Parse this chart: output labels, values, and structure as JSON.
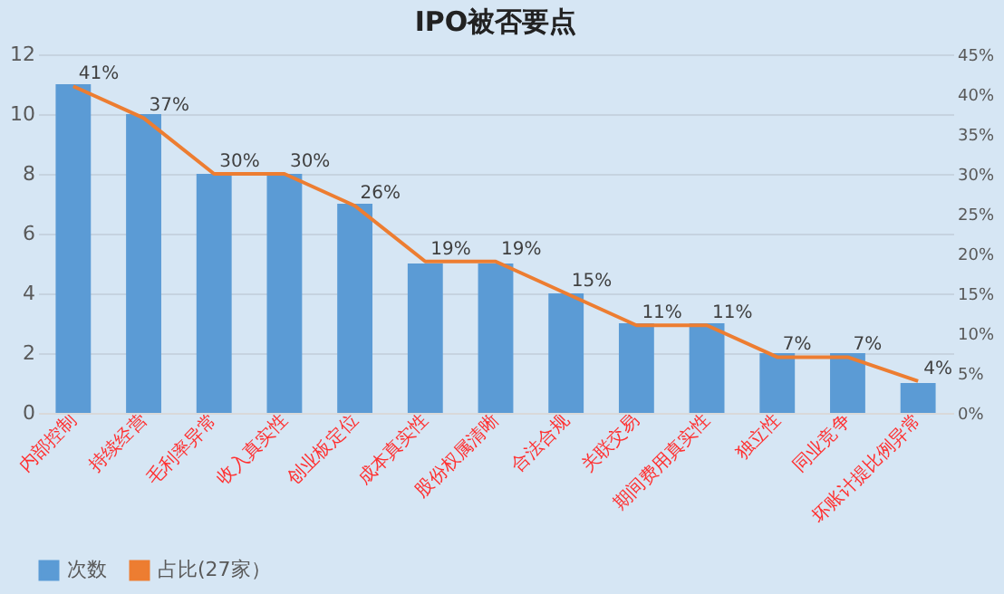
{
  "chart_data": {
    "type": "bar",
    "title": "IPO被否要点",
    "categories": [
      "内部控制",
      "持续经营",
      "毛利率异常",
      "收入真实性",
      "创业板定位",
      "成本真实性",
      "股份权属清晰",
      "合法合规",
      "关联交易",
      "期间费用真实性",
      "独立性",
      "同业竞争",
      "坏账计提比例异常"
    ],
    "series": [
      {
        "name": "次数",
        "color": "#5b9bd5",
        "values": [
          11,
          10,
          8,
          8,
          7,
          5,
          5,
          4,
          3,
          3,
          2,
          2,
          1
        ]
      },
      {
        "name": "占比(27家）",
        "type": "line",
        "axis": "y2",
        "color": "#ed7d31",
        "values": [
          41,
          37,
          30,
          30,
          26,
          19,
          19,
          15,
          11,
          11,
          7,
          7,
          4
        ],
        "value_labels": [
          "41%",
          "37%",
          "30%",
          "30%",
          "26%",
          "19%",
          "19%",
          "15%",
          "11%",
          "11%",
          "7%",
          "7%",
          "4%"
        ]
      }
    ],
    "ylim": [
      0,
      12
    ],
    "yticks": [
      0,
      2,
      4,
      6,
      8,
      10,
      12
    ],
    "y2lim": [
      0,
      45
    ],
    "y2ticks": [
      {
        "value": 0,
        "label": "0%"
      },
      {
        "value": 5,
        "label": "5%"
      },
      {
        "value": 10,
        "label": "10%"
      },
      {
        "value": 15,
        "label": "15%"
      },
      {
        "value": 20,
        "label": "20%"
      },
      {
        "value": 25,
        "label": "25%"
      },
      {
        "value": 30,
        "label": "30%"
      },
      {
        "value": 35,
        "label": "35%"
      },
      {
        "value": 40,
        "label": "40%"
      },
      {
        "value": 45,
        "label": "45%"
      }
    ],
    "grid": "y",
    "legend": "bottom",
    "marker": "none"
  }
}
